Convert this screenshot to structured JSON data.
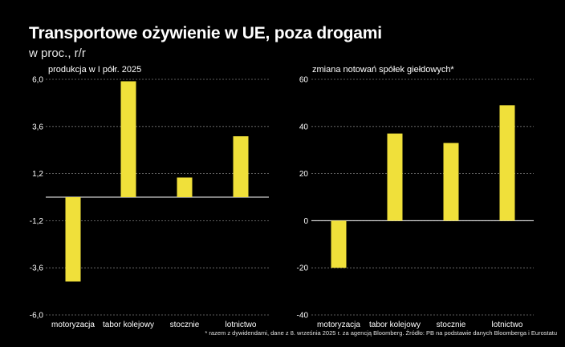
{
  "title": "Transportowe ożywienie w UE, poza drogami",
  "subtitle": "w proc., r/r",
  "footnote": "* razem z dywidendami, dane z 8. września 2025 r. za agencją Bloomberg. Źródło: PB na podstawie danych Bloomberga i Eurostatu",
  "colors": {
    "bar": "#f0e03a",
    "background": "#000000",
    "grid": "#7a7a7a",
    "zero": "#ffffff",
    "text": "#ffffff"
  },
  "chart_data": [
    {
      "type": "bar",
      "title": "produkcja w I półr. 2025",
      "categories": [
        "motoryzacja",
        "tabor kolejowy",
        "stocznie",
        "lotnictwo"
      ],
      "values": [
        -4.3,
        5.9,
        1.0,
        3.1
      ],
      "ylim": [
        -6.0,
        6.0
      ],
      "yticks": [
        6.0,
        3.6,
        1.2,
        -1.2,
        -3.6,
        -6.0
      ],
      "ytick_labels": [
        "6,0",
        "3,6",
        "1,2",
        "-1,2",
        "-3,6",
        "-6,0"
      ],
      "xlabel": "",
      "ylabel": ""
    },
    {
      "type": "bar",
      "title": "zmiana notowań spółek giełdowych*",
      "categories": [
        "motoryzacja",
        "tabor kolejowy",
        "stocznie",
        "lotnictwo"
      ],
      "values": [
        -20,
        37,
        33,
        49
      ],
      "ylim": [
        -40,
        60
      ],
      "yticks": [
        60,
        40,
        20,
        0,
        -20,
        -40
      ],
      "ytick_labels": [
        "60",
        "40",
        "20",
        "0",
        "-20",
        "-40"
      ],
      "xlabel": "",
      "ylabel": ""
    }
  ]
}
